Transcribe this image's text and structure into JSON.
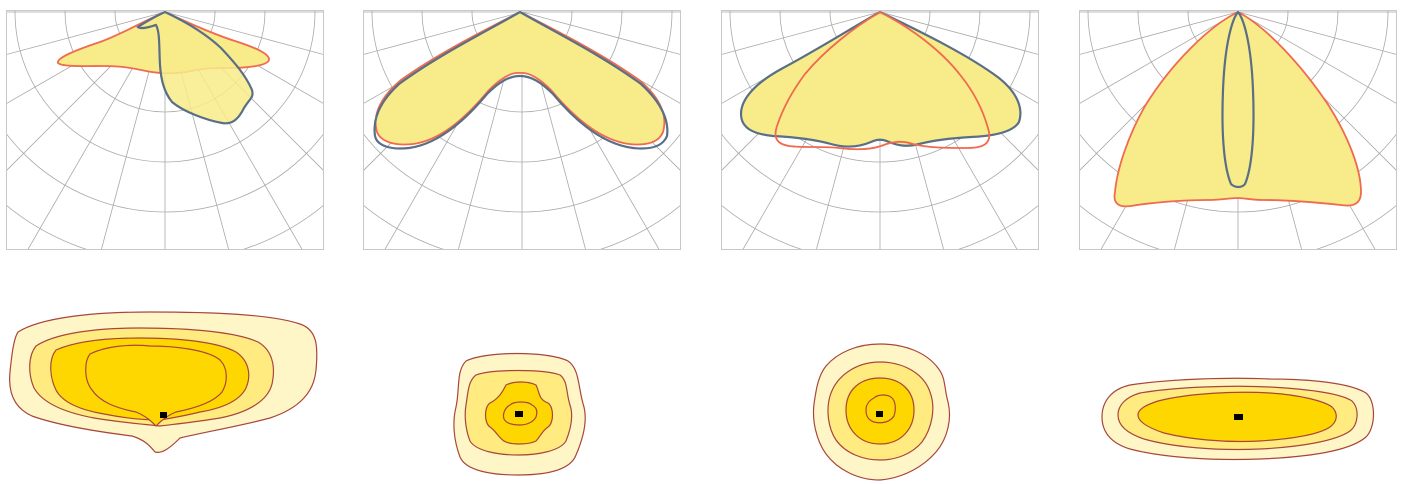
{
  "colors": {
    "background": "#ffffff",
    "frame": "#c8c8c8",
    "grid": "#a9a9a9",
    "fill": "#f8ec8a",
    "curve_red": "#ef6a4f",
    "curve_blue": "#5a6f86",
    "iso_outline": "#a8463c",
    "iso_levels": [
      "#fff6c8",
      "#ffeb80",
      "#ffd700"
    ],
    "luminaire": "#000000"
  },
  "polar_diagrams": [
    {
      "id": "p1",
      "curves": [
        "c0-180",
        "c90-270"
      ]
    },
    {
      "id": "p2",
      "curves": [
        "c0-180",
        "c90-270"
      ]
    },
    {
      "id": "p3",
      "curves": [
        "c0-180",
        "c90-270"
      ]
    },
    {
      "id": "p4",
      "curves": [
        "c0-180",
        "c90-270"
      ]
    }
  ],
  "isolux_diagrams": [
    {
      "id": "i1",
      "levels": 4
    },
    {
      "id": "i2",
      "levels": 4
    },
    {
      "id": "i3",
      "levels": 4
    },
    {
      "id": "i4",
      "levels": 3
    }
  ]
}
